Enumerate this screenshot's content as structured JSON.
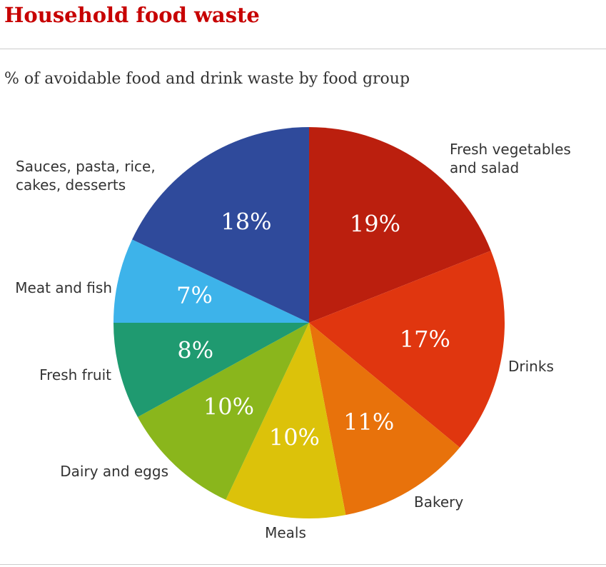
{
  "chart_data": {
    "type": "pie",
    "title": "Household food waste",
    "subtitle": "% of avoidable food and drink waste by food  group",
    "categories": [
      "Fresh vegetables and salad",
      "Drinks",
      "Bakery",
      "Meals",
      "Dairy and eggs",
      "Fresh fruit",
      "Meat and fish",
      "Sauces, pasta, rice, cakes, desserts"
    ],
    "values": [
      19,
      17,
      11,
      10,
      10,
      8,
      7,
      18
    ],
    "value_labels": [
      "19%",
      "17%",
      "11%",
      "10%",
      "10%",
      "8%",
      "7%",
      "18%"
    ],
    "colors": [
      "#bb1f0e",
      "#e0360f",
      "#e8720b",
      "#dcc20a",
      "#8ab61c",
      "#1f9a70",
      "#3db3ea",
      "#2f4a9b"
    ]
  }
}
